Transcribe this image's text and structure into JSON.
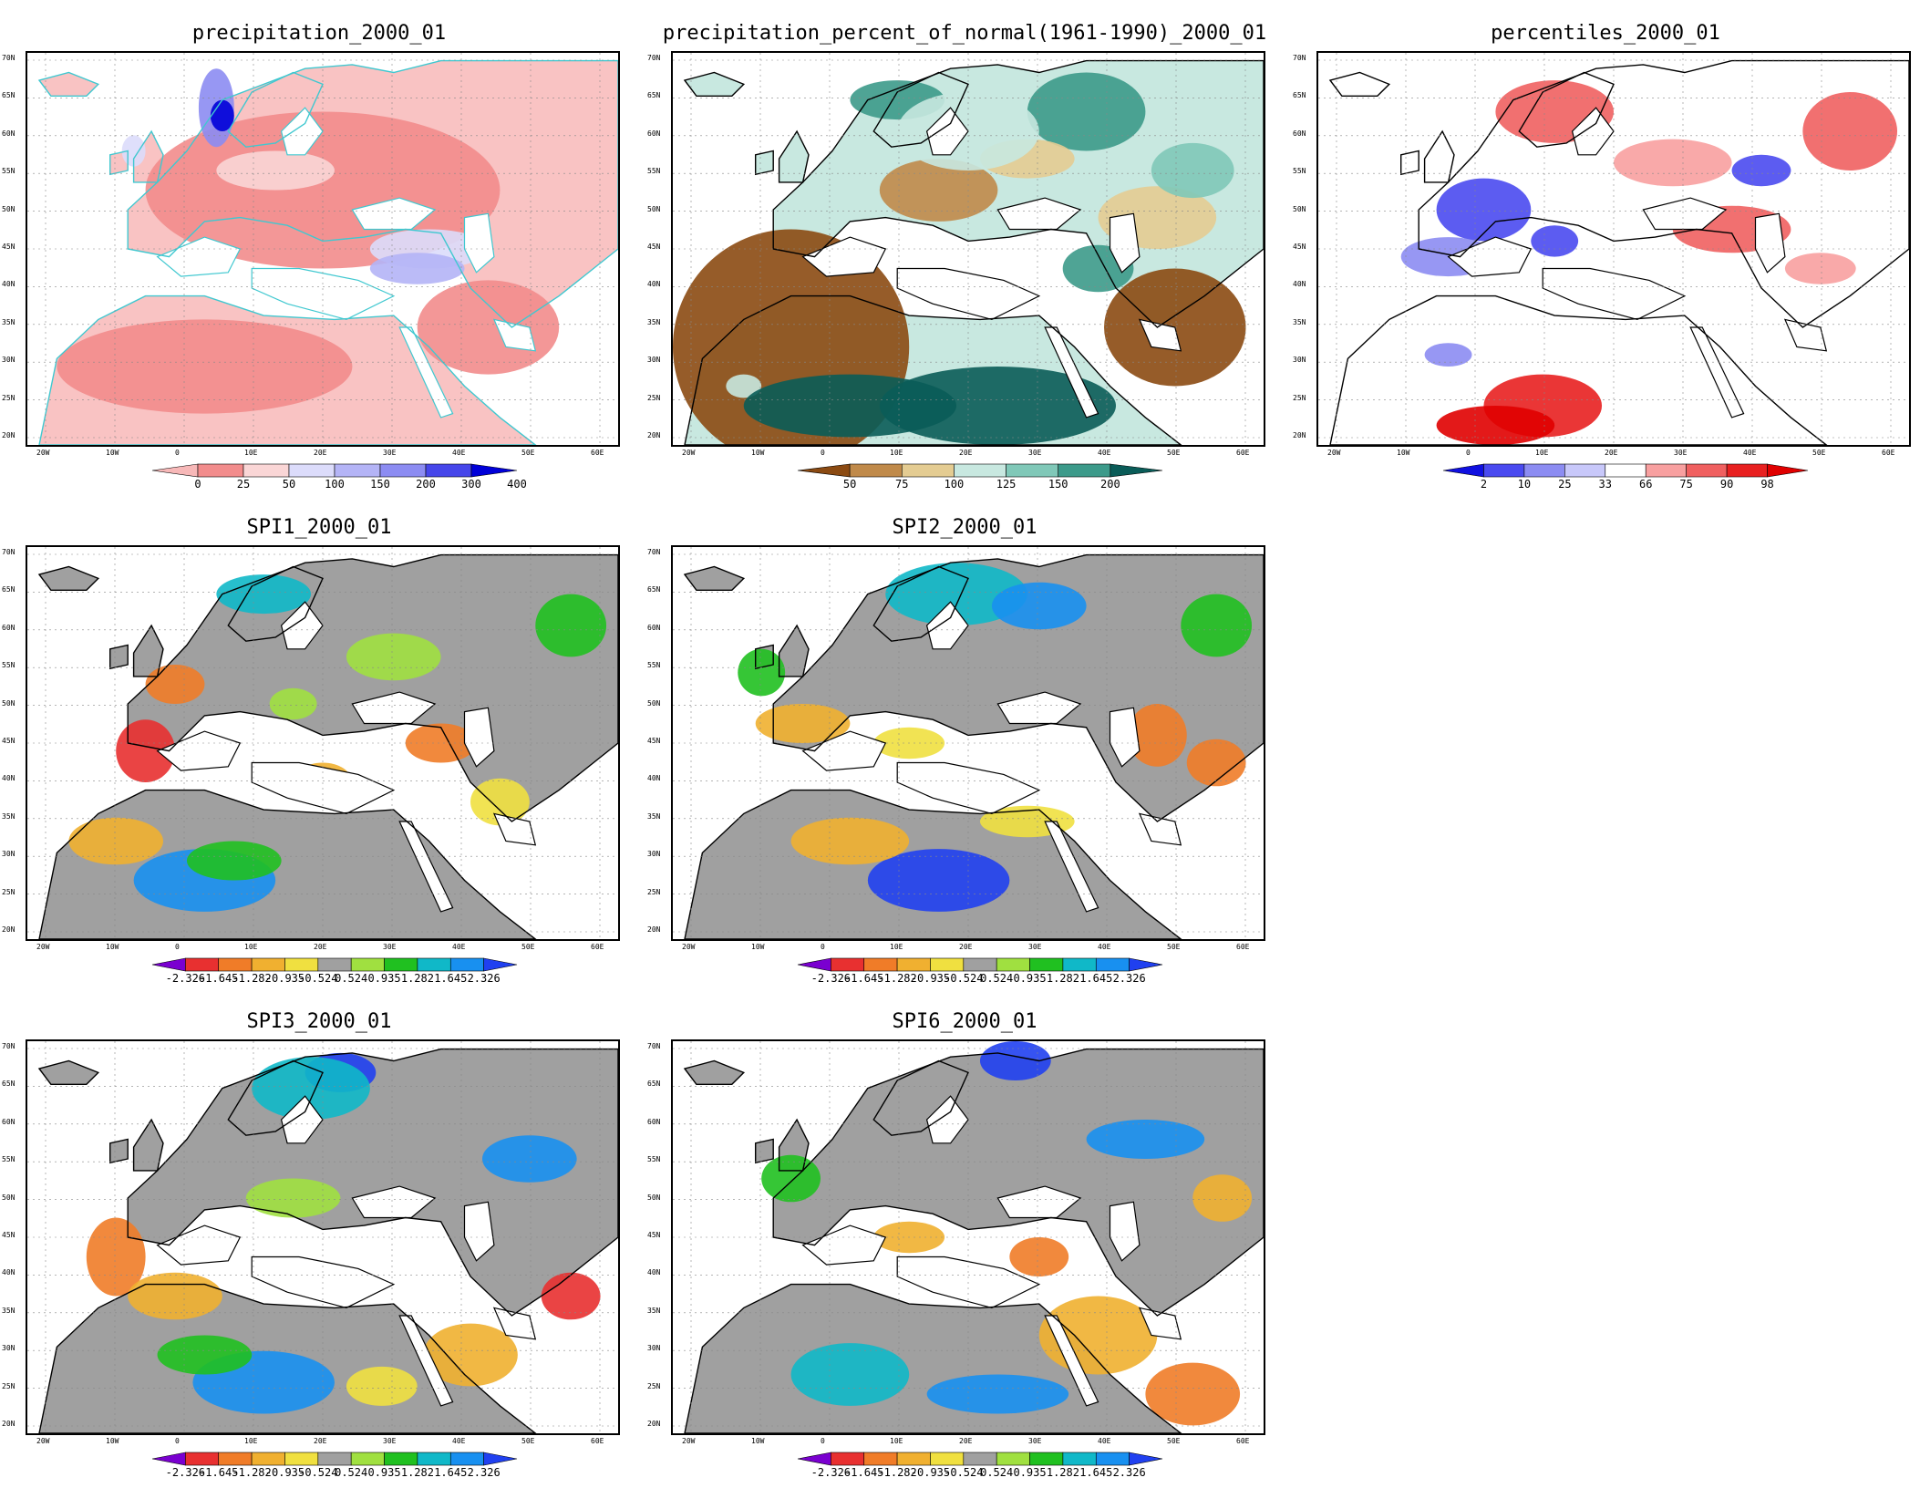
{
  "panels": [
    {
      "key": "precip",
      "title": "precipitation_2000_01",
      "tick_labels": [
        "0",
        "25",
        "50",
        "100",
        "150",
        "200",
        "300",
        "400"
      ],
      "colors": [
        "#f7b8b8",
        "#f28c8c",
        "#fad6d6",
        "#dcdcfb",
        "#b4b4f6",
        "#8c8cf2",
        "#4646ea",
        "#0000d8"
      ],
      "land_base": "#f9c3c3",
      "coast_color": "#40c8d0"
    },
    {
      "key": "percent",
      "title": "precipitation_percent_of_normal(1961-1990)_2000_01",
      "tick_labels": [
        "50",
        "75",
        "100",
        "125",
        "150",
        "200"
      ],
      "colors": [
        "#8b4a12",
        "#c08a4a",
        "#e4cc92",
        "#c8e8e0",
        "#80c8b8",
        "#3c9a8a",
        "#0a5c58"
      ],
      "land_base": "#c8e8e0",
      "coast_color": "#000000"
    },
    {
      "key": "percentiles",
      "title": "percentiles_2000_01",
      "tick_labels": [
        "2",
        "10",
        "25",
        "33",
        "66",
        "75",
        "90",
        "98"
      ],
      "colors": [
        "#1010e0",
        "#4a4af0",
        "#8c8cf2",
        "#c8c8fa",
        "#ffffff",
        "#f8a0a0",
        "#f06060",
        "#e82020",
        "#e00000"
      ],
      "land_base": "#ffffff",
      "coast_color": "#000000"
    },
    {
      "key": "spi1",
      "title": "SPI1_2000_01",
      "tick_labels": [
        "-2.326",
        "-1.645",
        "-1.282",
        "-0.935",
        "-0.524",
        "0.524",
        "0.935",
        "1.282",
        "1.645",
        "2.326"
      ],
      "colors": [
        "#7a00d0",
        "#e83030",
        "#f07c28",
        "#f0b030",
        "#f0e040",
        "#a0a0a0",
        "#a0e040",
        "#20c020",
        "#10b8c8",
        "#1890f0",
        "#2040f0"
      ],
      "land_base": "#a0a0a0",
      "coast_color": "#000000"
    },
    {
      "key": "spi2",
      "title": "SPI2_2000_01",
      "tick_labels": [
        "-2.326",
        "-1.645",
        "-1.282",
        "-0.935",
        "-0.524",
        "0.524",
        "0.935",
        "1.282",
        "1.645",
        "2.326"
      ],
      "colors": [
        "#7a00d0",
        "#e83030",
        "#f07c28",
        "#f0b030",
        "#f0e040",
        "#a0a0a0",
        "#a0e040",
        "#20c020",
        "#10b8c8",
        "#1890f0",
        "#2040f0"
      ],
      "land_base": "#a0a0a0",
      "coast_color": "#000000"
    },
    {
      "key": "spi3",
      "title": "SPI3_2000_01",
      "tick_labels": [
        "-2.326",
        "-1.645",
        "-1.282",
        "-0.935",
        "-0.524",
        "0.524",
        "0.935",
        "1.282",
        "1.645",
        "2.326"
      ],
      "colors": [
        "#7a00d0",
        "#e83030",
        "#f07c28",
        "#f0b030",
        "#f0e040",
        "#a0a0a0",
        "#a0e040",
        "#20c020",
        "#10b8c8",
        "#1890f0",
        "#2040f0"
      ],
      "land_base": "#a0a0a0",
      "coast_color": "#000000"
    },
    {
      "key": "spi6",
      "title": "SPI6_2000_01",
      "tick_labels": [
        "-2.326",
        "-1.645",
        "-1.282",
        "-0.935",
        "-0.524",
        "0.524",
        "0.935",
        "1.282",
        "1.645",
        "2.326"
      ],
      "colors": [
        "#7a00d0",
        "#e83030",
        "#f07c28",
        "#f0b030",
        "#f0e040",
        "#a0a0a0",
        "#a0e040",
        "#20c020",
        "#10b8c8",
        "#1890f0",
        "#2040f0"
      ],
      "land_base": "#a0a0a0",
      "coast_color": "#000000"
    }
  ],
  "lat_labels": [
    "70N",
    "65N",
    "60N",
    "55N",
    "50N",
    "45N",
    "40N",
    "35N",
    "30N",
    "25N",
    "20N"
  ],
  "lon_labels": [
    "20W",
    "10W",
    "0",
    "10E",
    "20E",
    "30E",
    "40E",
    "50E",
    "60E"
  ]
}
